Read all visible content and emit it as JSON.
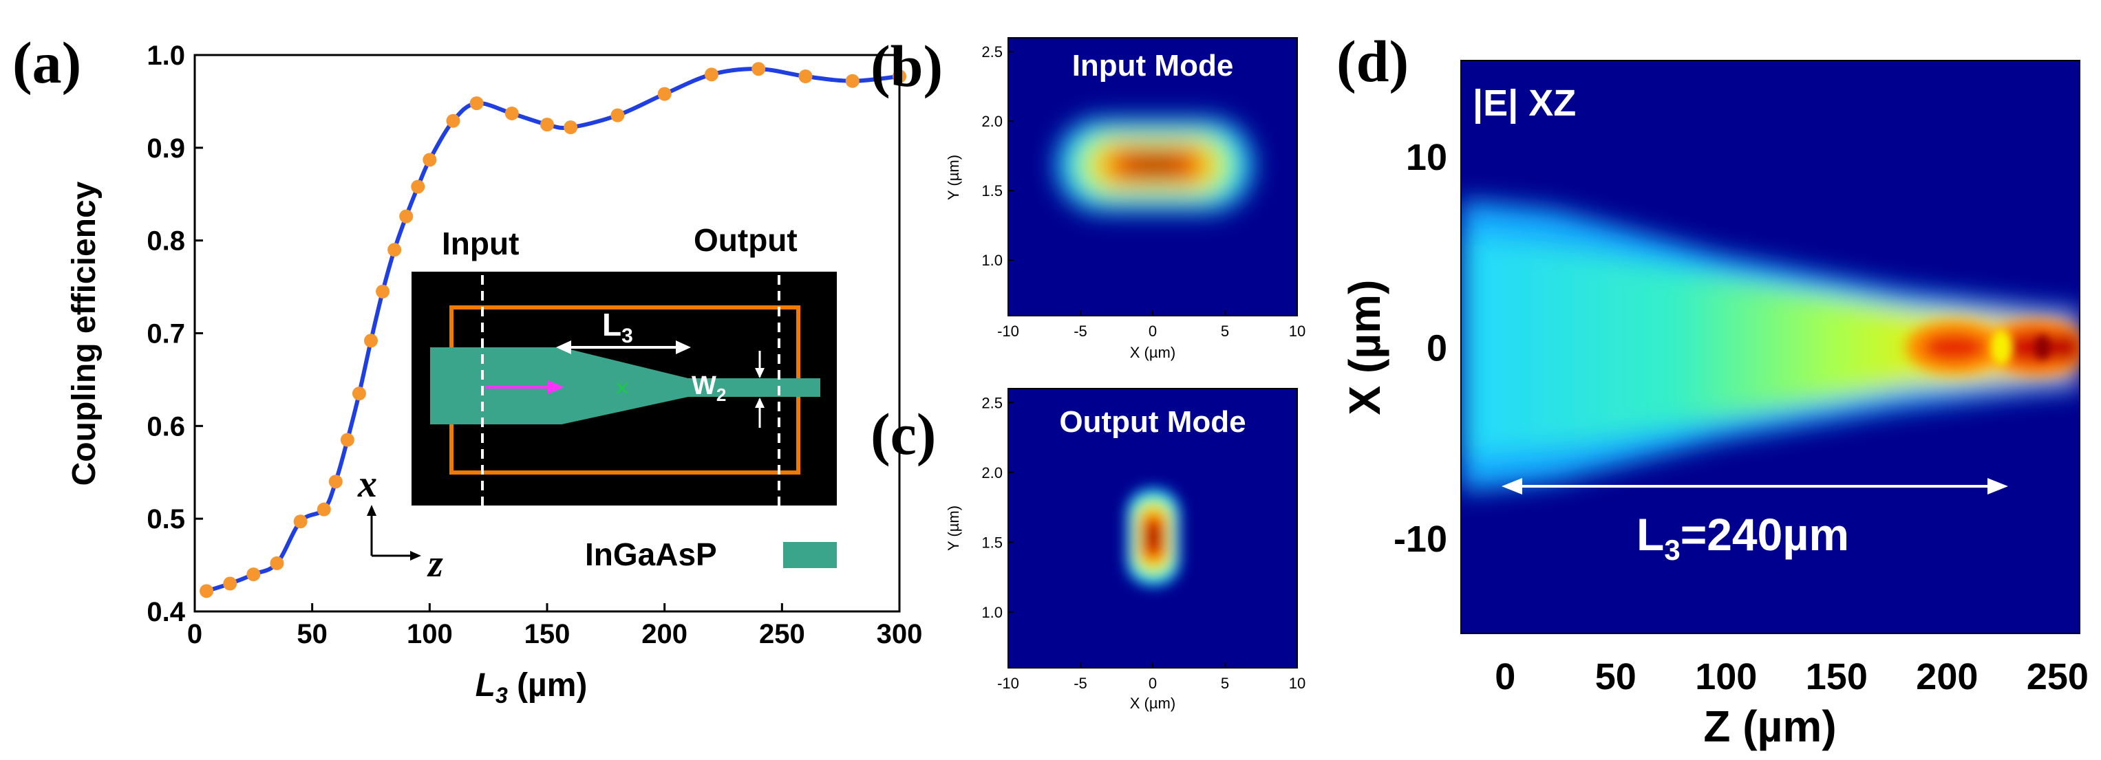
{
  "chart_data": [
    {
      "panel": "(a)",
      "type": "line",
      "xlabel_main": "L",
      "xlabel_sub": "3",
      "xlabel_unit": " (µm)",
      "ylabel": "Coupling efficiency",
      "xlim": [
        0,
        300
      ],
      "ylim": [
        0.4,
        1.0
      ],
      "xticks": [
        0,
        50,
        100,
        150,
        200,
        250,
        300
      ],
      "yticks": [
        "0.4",
        "0.5",
        "0.6",
        "0.7",
        "0.8",
        "0.9",
        "1.0"
      ],
      "line_color": "#1f3fe0",
      "marker_color": "#f5962e",
      "series": [
        {
          "name": "Coupling efficiency",
          "x": [
            5,
            15,
            25,
            35,
            45,
            55,
            60,
            65,
            70,
            75,
            80,
            85,
            90,
            95,
            100,
            110,
            120,
            135,
            150,
            160,
            180,
            200,
            220,
            240,
            260,
            280,
            300
          ],
          "y": [
            0.422,
            0.43,
            0.44,
            0.452,
            0.497,
            0.51,
            0.54,
            0.585,
            0.635,
            0.692,
            0.745,
            0.79,
            0.826,
            0.858,
            0.887,
            0.929,
            0.948,
            0.937,
            0.925,
            0.922,
            0.935,
            0.958,
            0.979,
            0.985,
            0.977,
            0.972,
            0.977
          ]
        }
      ],
      "inset": {
        "input_label": "Input",
        "output_label": "Output",
        "length_label": "L",
        "length_sub": "3",
        "width_label": "W",
        "width_sub": "2",
        "material_label": "InGaAsP",
        "material_color": "#3aa58b",
        "axis_x": "x",
        "axis_z": "z"
      }
    },
    {
      "panel": "(b)",
      "type": "heatmap",
      "title": "Input Mode",
      "xlabel": "X (µm)",
      "ylabel": "Y (µm)",
      "xlim": [
        -10,
        10
      ],
      "ylim": [
        0.6,
        2.6
      ],
      "xticks": [
        "-10",
        "-5",
        "0",
        "5",
        "10"
      ],
      "yticks": [
        "1.0",
        "1.5",
        "2.0",
        "2.5"
      ],
      "mode_center": [
        0,
        1.6
      ],
      "mode_halfwidth_x": 7.5,
      "mode_halfwidth_y": 0.5
    },
    {
      "panel": "(c)",
      "type": "heatmap",
      "title": "Output Mode",
      "xlabel": "X (µm)",
      "ylabel": "Y (µm)",
      "xlim": [
        -10,
        10
      ],
      "ylim": [
        0.6,
        2.6
      ],
      "xticks": [
        "-10",
        "-5",
        "0",
        "5",
        "10"
      ],
      "yticks": [
        "1.0",
        "1.5",
        "2.0",
        "2.5"
      ],
      "mode_center": [
        0,
        1.6
      ],
      "mode_halfwidth_x": 1.6,
      "mode_halfwidth_y": 0.5
    },
    {
      "panel": "(d)",
      "type": "heatmap",
      "title": "|E| XZ",
      "xlabel": "Z (µm)",
      "ylabel": "X (µm)",
      "xlim": [
        -20,
        260
      ],
      "ylim": [
        -15,
        15
      ],
      "xticks": [
        "0",
        "50",
        "100",
        "150",
        "200",
        "250"
      ],
      "yticks": [
        "10",
        "0",
        "-10"
      ],
      "annotation_main": "L",
      "annotation_sub": "3",
      "annotation_value": "=240µm",
      "annotation_range": [
        0,
        240
      ]
    }
  ]
}
